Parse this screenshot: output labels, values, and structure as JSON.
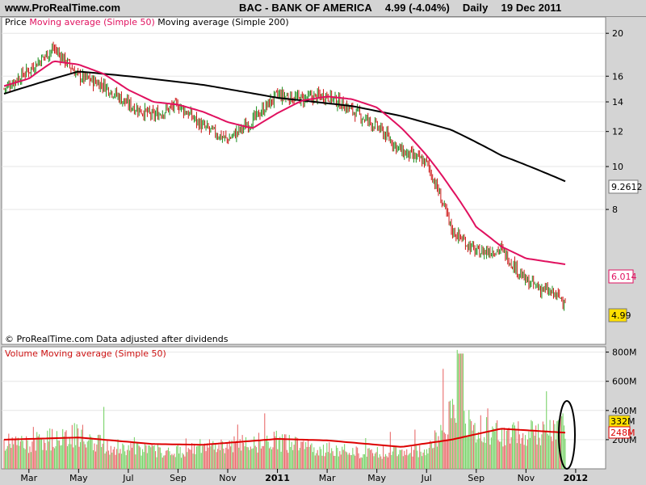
{
  "header": {
    "site": "www.ProRealTime.com",
    "symbol": "BAC - BANK OF AMERICA",
    "price_change": "4.99 (-4.04%)",
    "period": "Daily",
    "date": "19 Dec 2011"
  },
  "price_panel": {
    "legend_price": "Price",
    "legend_ma50": "Moving average (Simple 50)",
    "legend_ma200": "Moving average (Simple 200)",
    "footer_note": "© ProRealTime.com  Data adjusted after dividends",
    "ma200_value_label": "9.2612",
    "ma50_value_label": "6.014",
    "price_value_label": "4.99"
  },
  "volume_panel": {
    "legend_volume": "Volume",
    "legend_ma50": "Moving average (Simple 50)",
    "volume_value_label": "332M",
    "ma50_value_label": "248M"
  },
  "colors": {
    "up": "#1a8c1a",
    "down": "#cc1111",
    "ma50": "#e0115f",
    "ma200": "#000000",
    "volume_up": "#7ad36a",
    "volume_down": "#e96c6c",
    "volume_ma": "#dd0000",
    "background": "#ffffff",
    "frame": "#d4d4d4"
  },
  "chart_data": [
    {
      "type": "candlestick",
      "title": "BAC - BANK OF AMERICA",
      "scale": "log",
      "ylim": [
        4.35,
        21.5
      ],
      "y_ticks": [
        20,
        16,
        14,
        12,
        10,
        8
      ],
      "x_ticks": [
        "Mar",
        "May",
        "Jul",
        "Sep",
        "Nov",
        "2011",
        "Mar",
        "May",
        "Jul",
        "Sep",
        "Nov",
        "2012"
      ],
      "x_ticks_bold": [
        "2011",
        "2012"
      ],
      "x_range": [
        "2010-02",
        "2011-12-19"
      ],
      "last_close": 4.99,
      "series": [
        {
          "name": "Price",
          "x": [
            "2010-02",
            "2010-03",
            "2010-04",
            "2010-05",
            "2010-06",
            "2010-07",
            "2010-08",
            "2010-09",
            "2010-10",
            "2010-11",
            "2010-12",
            "2011-01",
            "2011-02",
            "2011-03",
            "2011-04",
            "2011-05",
            "2011-06",
            "2011-07",
            "2011-08",
            "2011-09",
            "2011-10",
            "2011-11",
            "2011-12-19"
          ],
          "values": [
            15.0,
            16.5,
            18.5,
            16.0,
            15.3,
            13.8,
            13.0,
            13.8,
            12.3,
            11.5,
            12.7,
            14.5,
            14.2,
            14.5,
            13.4,
            12.3,
            10.8,
            10.2,
            7.2,
            6.4,
            6.5,
            5.5,
            4.99
          ]
        },
        {
          "name": "Moving average (Simple 50)",
          "x": [
            "2010-02",
            "2010-03",
            "2010-04",
            "2010-05",
            "2010-06",
            "2010-07",
            "2010-08",
            "2010-09",
            "2010-10",
            "2010-11",
            "2010-12",
            "2011-01",
            "2011-02",
            "2011-03",
            "2011-04",
            "2011-05",
            "2011-06",
            "2011-07",
            "2011-08",
            "2011-09",
            "2011-10",
            "2011-11",
            "2011-12-19"
          ],
          "values": [
            15.2,
            15.8,
            17.3,
            17.0,
            16.2,
            14.9,
            14.0,
            13.8,
            13.3,
            12.6,
            12.2,
            13.2,
            14.1,
            14.4,
            14.2,
            13.6,
            12.2,
            10.6,
            8.9,
            7.3,
            6.6,
            6.2,
            6.014
          ]
        },
        {
          "name": "Moving average (Simple 200)",
          "x": [
            "2010-02",
            "2010-05",
            "2010-07",
            "2010-10",
            "2011-01",
            "2011-04",
            "2011-06",
            "2011-08",
            "2011-10",
            "2011-12-19"
          ],
          "values": [
            14.6,
            16.4,
            16.0,
            15.3,
            14.3,
            13.7,
            13.0,
            12.1,
            10.6,
            9.2612
          ]
        }
      ]
    },
    {
      "type": "bar",
      "title": "Volume",
      "ylim": [
        0,
        820
      ],
      "y_ticks": [
        "800M",
        "600M",
        "400M",
        "200M"
      ],
      "x_range": [
        "2010-02",
        "2011-12-19"
      ],
      "last_volume": "332M",
      "series": [
        {
          "name": "Volume",
          "x": [
            "2010-02",
            "2010-03",
            "2010-04",
            "2010-05",
            "2010-06",
            "2010-07",
            "2010-08",
            "2010-09",
            "2010-10",
            "2010-11",
            "2010-12",
            "2011-01",
            "2011-02",
            "2011-03",
            "2011-04",
            "2011-05",
            "2011-06",
            "2011-07",
            "2011-08",
            "2011-09",
            "2011-10",
            "2011-11",
            "2011-12-19"
          ],
          "values": [
            200,
            190,
            230,
            260,
            180,
            160,
            140,
            130,
            170,
            180,
            200,
            210,
            170,
            150,
            130,
            120,
            130,
            140,
            400,
            300,
            280,
            260,
            332
          ]
        },
        {
          "name": "Moving average (Simple 50)",
          "x": [
            "2010-02",
            "2010-05",
            "2010-08",
            "2010-10",
            "2011-01",
            "2011-03",
            "2011-06",
            "2011-08",
            "2011-10",
            "2011-12-19"
          ],
          "values": [
            200,
            215,
            170,
            165,
            205,
            195,
            150,
            200,
            275,
            248
          ]
        }
      ]
    }
  ]
}
